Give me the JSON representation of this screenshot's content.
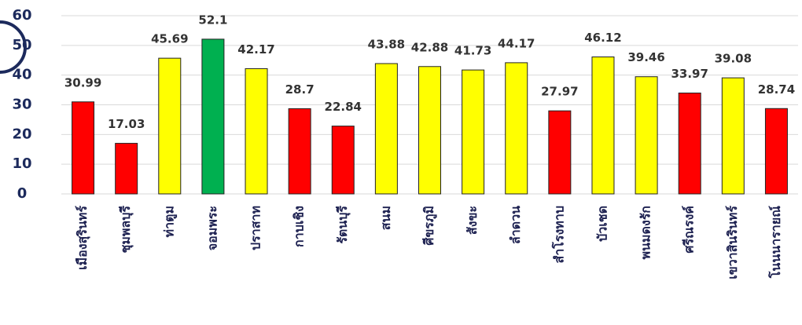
{
  "chart_data": {
    "type": "bar",
    "categories": [
      "เมืองสุรินทร์",
      "ชุมพลบุรี",
      "ท่าตูม",
      "จอมพระ",
      "ปราสาท",
      "กาบเชิง",
      "รัตนบุรี",
      "สนม",
      "ศีขรภูมิ",
      "สังขะ",
      "ลำดวน",
      "สำโรงทาบ",
      "บัวเชด",
      "พนมดงรัก",
      "ศรีณรงค์",
      "เขวาสินรินทร์",
      "โนนนารายณ์"
    ],
    "values": [
      30.99,
      17.03,
      45.69,
      52.1,
      42.17,
      28.7,
      22.84,
      43.88,
      42.88,
      41.73,
      44.17,
      27.97,
      46.12,
      39.46,
      33.97,
      39.08,
      28.74
    ],
    "colors": [
      "#ff0000",
      "#ff0000",
      "#ffff00",
      "#00b050",
      "#ffff00",
      "#ff0000",
      "#ff0000",
      "#ffff00",
      "#ffff00",
      "#ffff00",
      "#ffff00",
      "#ff0000",
      "#ffff00",
      "#ffff00",
      "#ff0000",
      "#ffff00",
      "#ff0000"
    ],
    "ylim": [
      0,
      60
    ],
    "yticks": [
      0,
      10,
      20,
      30,
      40,
      50,
      60
    ],
    "grid": true
  }
}
